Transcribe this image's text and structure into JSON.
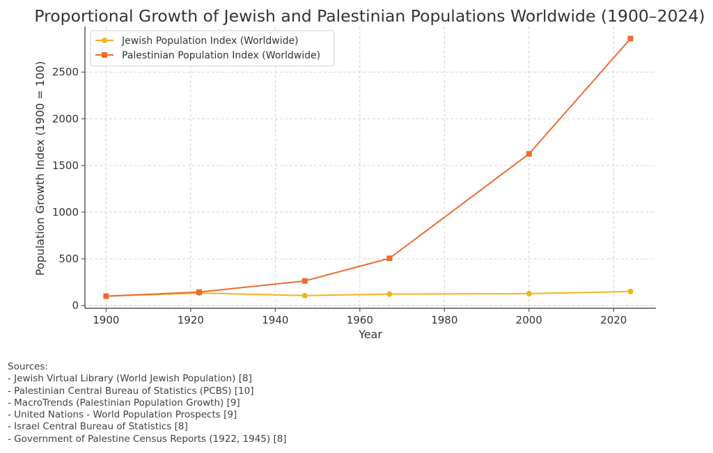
{
  "chart_data": {
    "type": "line",
    "title": "Proportional Growth of Jewish and Palestinian Populations Worldwide (1900–2024)",
    "xlabel": "Year",
    "ylabel": "Population Growth Index (1900 = 100)",
    "xlim": [
      1895,
      2030
    ],
    "ylim": [
      -30,
      2990
    ],
    "xticks": [
      1900,
      1920,
      1940,
      1960,
      1980,
      2000,
      2020
    ],
    "yticks": [
      0,
      500,
      1000,
      1500,
      2000,
      2500
    ],
    "grid": true,
    "legend": "top-left",
    "series": [
      {
        "name": "Jewish Population Index (Worldwide)",
        "color": "#f5b21b",
        "marker": "circle",
        "x": [
          1900,
          1922,
          1947,
          1967,
          2000,
          2024
        ],
        "values": [
          100,
          133,
          106,
          122,
          127,
          150
        ]
      },
      {
        "name": "Palestinian Population Index (Worldwide)",
        "color": "#ec6b2d",
        "marker": "square",
        "x": [
          1900,
          1922,
          1947,
          1967,
          2000,
          2024
        ],
        "values": [
          100,
          143,
          263,
          505,
          1624,
          2860
        ]
      }
    ]
  },
  "sources": {
    "heading": "Sources:",
    "items": [
      "- Jewish Virtual Library (World Jewish Population) [8]",
      "- Palestinian Central Bureau of Statistics (PCBS) [10]",
      "- MacroTrends (Palestinian Population Growth) [9]",
      "- United Nations - World Population Prospects [9]",
      "- Israel Central Bureau of Statistics [8]",
      "- Government of Palestine Census Reports (1922, 1945) [8]"
    ]
  }
}
